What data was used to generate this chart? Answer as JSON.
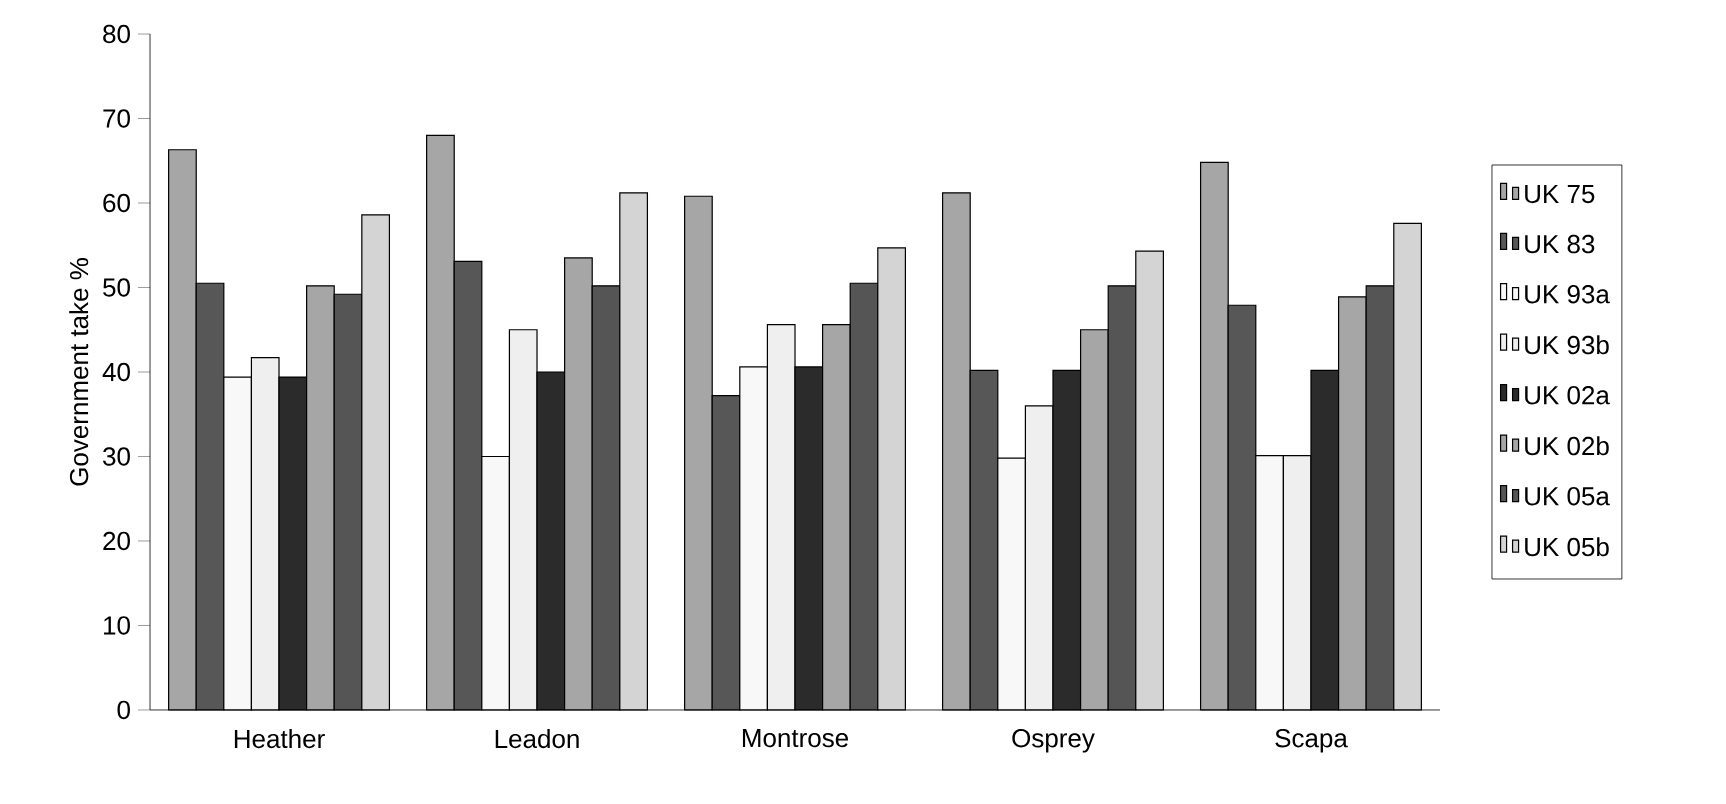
{
  "chart_data": {
    "type": "bar",
    "ylabel": "Government take %",
    "categories": [
      "Heather",
      "Leadon",
      "Montrose",
      "Osprey",
      "Scapa"
    ],
    "series": [
      {
        "name": "UK 75",
        "color": "#a6a6a6",
        "values": [
          66.3,
          68.0,
          60.8,
          61.2,
          64.8
        ]
      },
      {
        "name": "UK 83",
        "color": "#575757",
        "values": [
          50.5,
          53.1,
          37.2,
          40.2,
          47.9
        ]
      },
      {
        "name": "UK 93a",
        "color": "#f8f8f8",
        "values": [
          39.4,
          30.0,
          40.6,
          29.8,
          30.1
        ]
      },
      {
        "name": "UK 93b",
        "color": "#efefef",
        "values": [
          41.7,
          45.0,
          45.6,
          36.0,
          30.1
        ]
      },
      {
        "name": "UK 02a",
        "color": "#2b2b2b",
        "values": [
          39.4,
          40.0,
          40.6,
          40.2,
          40.2
        ]
      },
      {
        "name": "UK 02b",
        "color": "#a6a6a6",
        "values": [
          50.2,
          53.5,
          45.6,
          45.0,
          48.9
        ]
      },
      {
        "name": "UK 05a",
        "color": "#555555",
        "values": [
          49.2,
          50.2,
          50.5,
          50.2,
          50.2
        ]
      },
      {
        "name": "UK 05b",
        "color": "#d4d4d4",
        "values": [
          58.6,
          61.2,
          54.7,
          54.3,
          57.6
        ]
      }
    ],
    "ylim": [
      0,
      80
    ],
    "yticks": [
      0,
      10,
      20,
      30,
      40,
      50,
      60,
      70,
      80
    ],
    "grid": false,
    "legend": "right"
  }
}
